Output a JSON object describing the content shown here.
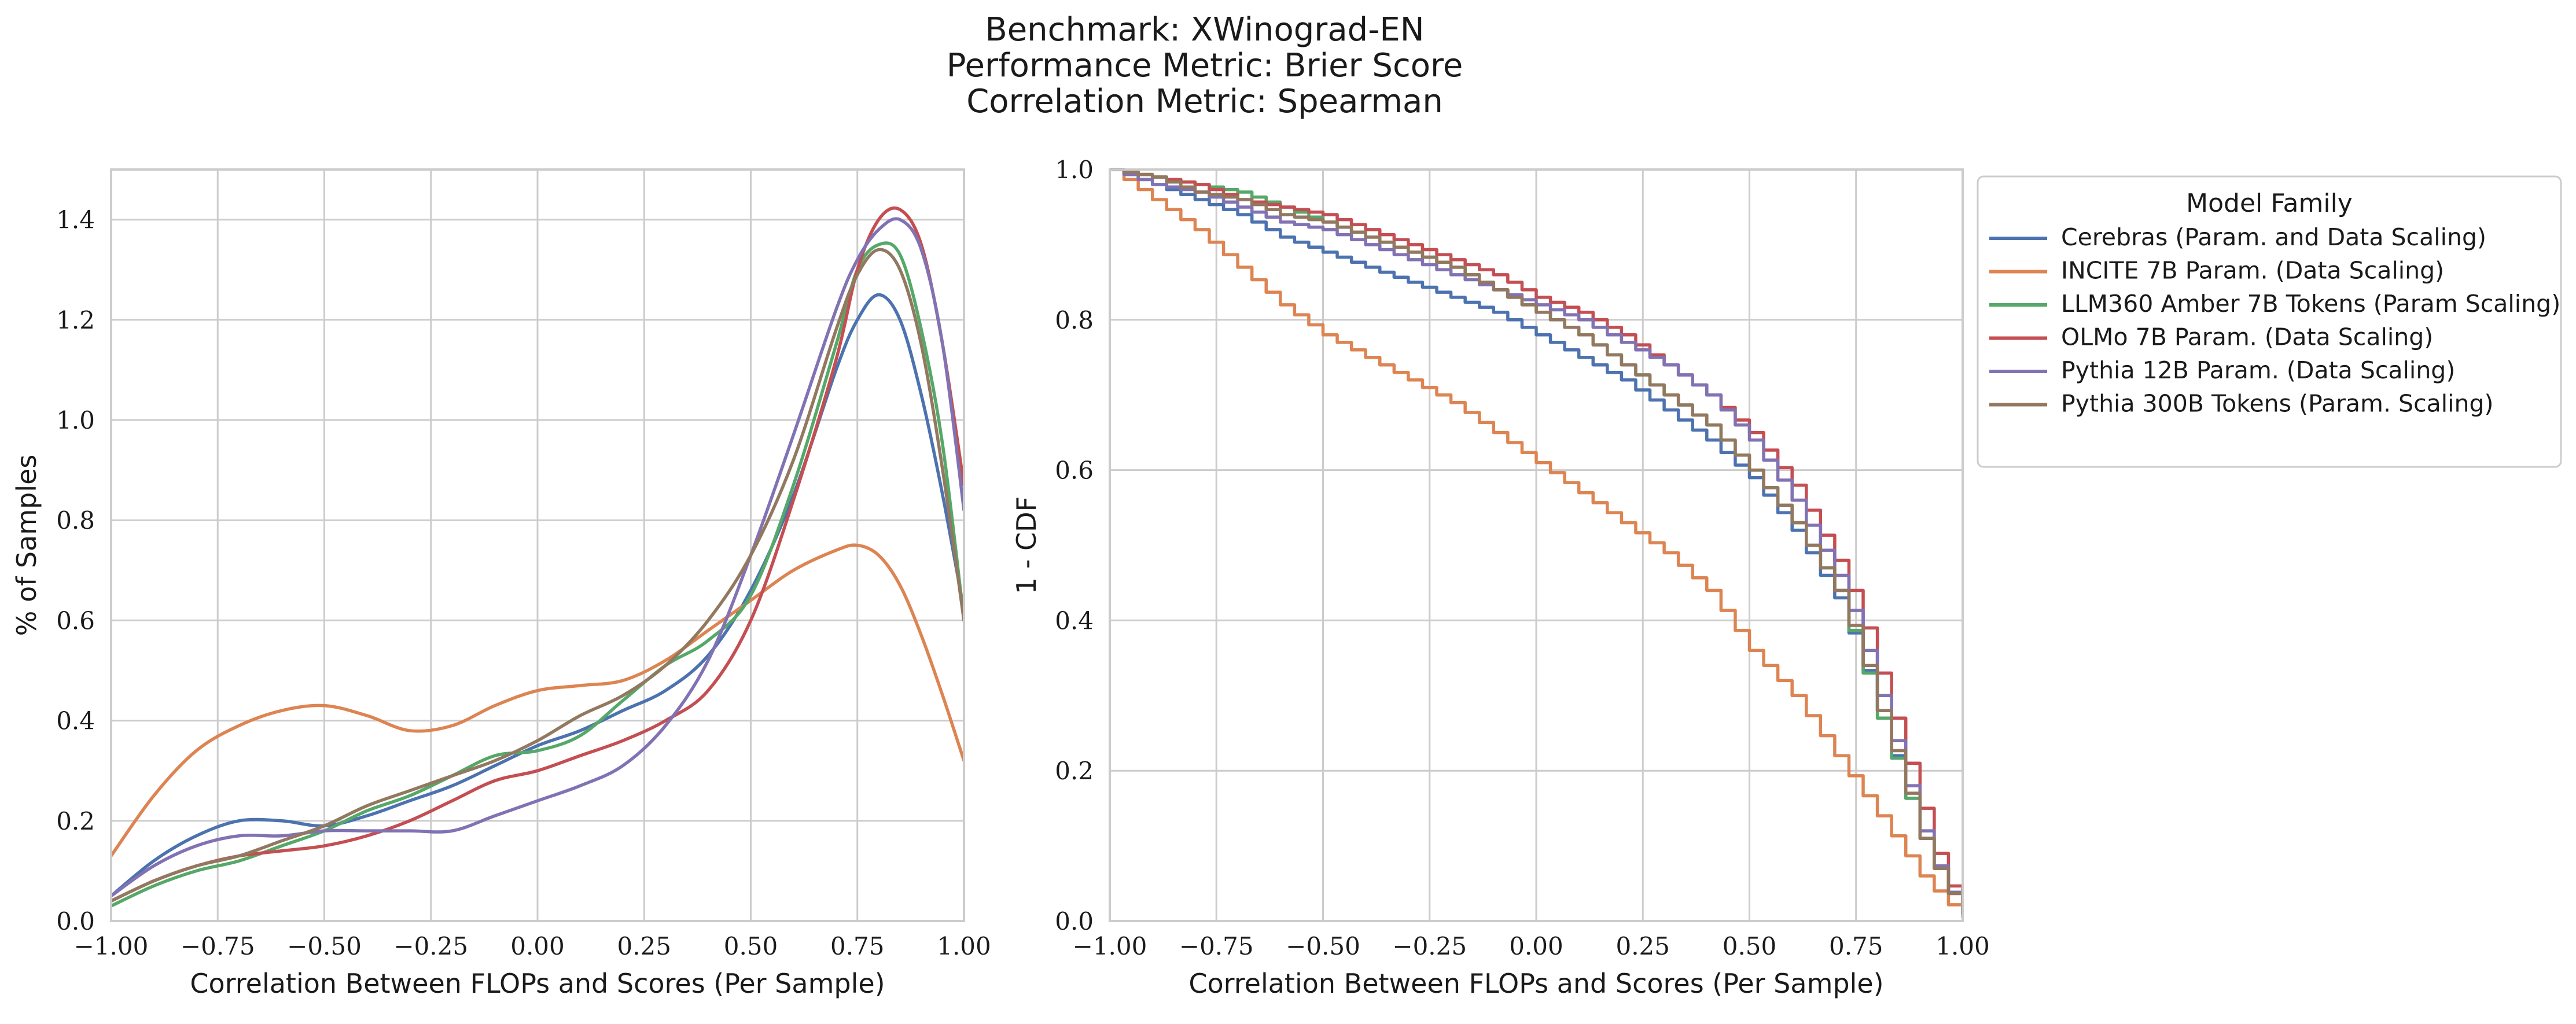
{
  "title_lines": [
    "Benchmark: XWinograd-EN",
    "Performance Metric: Brier Score",
    "Correlation Metric: Spearman"
  ],
  "colors": {
    "Cerebras": "#4c72b0",
    "INCITE": "#dd8452",
    "LLM360": "#55a868",
    "OLMo": "#c44e52",
    "Pythia12B": "#8172b3",
    "Pythia300B": "#937860"
  },
  "legend": {
    "title": "Model Family",
    "entries": [
      {
        "label": "Cerebras (Param. and Data Scaling)",
        "color": "#4c72b0"
      },
      {
        "label": "INCITE 7B Param. (Data Scaling)",
        "color": "#dd8452"
      },
      {
        "label": "LLM360 Amber 7B Tokens (Param Scaling)",
        "color": "#55a868"
      },
      {
        "label": "OLMo 7B Param. (Data Scaling)",
        "color": "#c44e52"
      },
      {
        "label": "Pythia 12B Param. (Data Scaling)",
        "color": "#8172b3"
      },
      {
        "label": "Pythia 300B Tokens (Param. Scaling)",
        "color": "#937860"
      }
    ]
  },
  "chart_data": [
    {
      "type": "line",
      "xlabel": "Correlation Between FLOPs and Scores (Per Sample)",
      "ylabel": "% of Samples",
      "xlim": [
        -1.0,
        1.0
      ],
      "ylim": [
        0.0,
        1.5
      ],
      "xticks": [
        -1.0,
        -0.75,
        -0.5,
        -0.25,
        0.0,
        0.25,
        0.5,
        0.75,
        1.0
      ],
      "xtick_labels": [
        "−1.00",
        "−0.75",
        "−0.50",
        "−0.25",
        "0.00",
        "0.25",
        "0.50",
        "0.75",
        "1.00"
      ],
      "yticks": [
        0.0,
        0.2,
        0.4,
        0.6,
        0.8,
        1.0,
        1.2,
        1.4
      ],
      "ytick_labels": [
        "0.0",
        "0.2",
        "0.4",
        "0.6",
        "0.8",
        "1.0",
        "1.2",
        "1.4"
      ],
      "grid": true,
      "x": [
        -1.0,
        -0.9,
        -0.8,
        -0.7,
        -0.6,
        -0.5,
        -0.4,
        -0.3,
        -0.2,
        -0.1,
        0.0,
        0.1,
        0.2,
        0.3,
        0.4,
        0.5,
        0.6,
        0.7,
        0.75,
        0.8,
        0.85,
        0.9,
        0.95,
        1.0
      ],
      "series": [
        {
          "name": "Cerebras (Param. and Data Scaling)",
          "color": "#4c72b0",
          "values": [
            0.05,
            0.12,
            0.17,
            0.2,
            0.2,
            0.19,
            0.21,
            0.24,
            0.27,
            0.31,
            0.35,
            0.38,
            0.42,
            0.46,
            0.53,
            0.66,
            0.85,
            1.1,
            1.2,
            1.25,
            1.2,
            1.05,
            0.85,
            0.62
          ]
        },
        {
          "name": "INCITE 7B Param. (Data Scaling)",
          "color": "#dd8452",
          "values": [
            0.13,
            0.25,
            0.34,
            0.39,
            0.42,
            0.43,
            0.41,
            0.38,
            0.39,
            0.43,
            0.46,
            0.47,
            0.48,
            0.52,
            0.58,
            0.64,
            0.7,
            0.74,
            0.75,
            0.73,
            0.67,
            0.57,
            0.45,
            0.32
          ]
        },
        {
          "name": "LLM360 Amber 7B Tokens (Param Scaling)",
          "color": "#55a868",
          "values": [
            0.03,
            0.07,
            0.1,
            0.12,
            0.15,
            0.18,
            0.22,
            0.25,
            0.29,
            0.33,
            0.34,
            0.37,
            0.44,
            0.51,
            0.56,
            0.65,
            0.87,
            1.15,
            1.3,
            1.35,
            1.33,
            1.18,
            0.95,
            0.6
          ]
        },
        {
          "name": "OLMo 7B Param. (Data Scaling)",
          "color": "#c44e52",
          "values": [
            0.04,
            0.08,
            0.11,
            0.13,
            0.14,
            0.15,
            0.17,
            0.2,
            0.24,
            0.28,
            0.3,
            0.33,
            0.36,
            0.4,
            0.46,
            0.6,
            0.84,
            1.12,
            1.3,
            1.4,
            1.42,
            1.35,
            1.15,
            0.87
          ]
        },
        {
          "name": "Pythia 12B Param. (Data Scaling)",
          "color": "#8172b3",
          "values": [
            0.05,
            0.11,
            0.15,
            0.17,
            0.17,
            0.18,
            0.18,
            0.18,
            0.18,
            0.21,
            0.24,
            0.27,
            0.31,
            0.39,
            0.52,
            0.73,
            0.97,
            1.22,
            1.32,
            1.38,
            1.4,
            1.34,
            1.15,
            0.82
          ]
        },
        {
          "name": "Pythia 300B Tokens (Param. Scaling)",
          "color": "#937860",
          "values": [
            0.04,
            0.08,
            0.11,
            0.13,
            0.16,
            0.19,
            0.23,
            0.26,
            0.29,
            0.32,
            0.36,
            0.41,
            0.45,
            0.51,
            0.6,
            0.73,
            0.92,
            1.18,
            1.29,
            1.34,
            1.3,
            1.15,
            0.9,
            0.6
          ]
        }
      ]
    },
    {
      "type": "line",
      "step": true,
      "xlabel": "Correlation Between FLOPs and Scores (Per Sample)",
      "ylabel": "1 - CDF",
      "xlim": [
        -1.0,
        1.0
      ],
      "ylim": [
        0.0,
        1.0
      ],
      "xticks": [
        -1.0,
        -0.75,
        -0.5,
        -0.25,
        0.0,
        0.25,
        0.5,
        0.75,
        1.0
      ],
      "xtick_labels": [
        "−1.00",
        "−0.75",
        "−0.50",
        "−0.25",
        "0.00",
        "0.25",
        "0.50",
        "0.75",
        "1.00"
      ],
      "yticks": [
        0.0,
        0.2,
        0.4,
        0.6,
        0.8,
        1.0
      ],
      "ytick_labels": [
        "0.0",
        "0.2",
        "0.4",
        "0.6",
        "0.8",
        "1.0"
      ],
      "grid": true,
      "legend_position": "outside right, top",
      "x": [
        -1.0,
        -0.9,
        -0.8,
        -0.7,
        -0.6,
        -0.5,
        -0.4,
        -0.3,
        -0.2,
        -0.1,
        0.0,
        0.1,
        0.2,
        0.3,
        0.4,
        0.5,
        0.6,
        0.7,
        0.75,
        0.8,
        0.85,
        0.9,
        0.95,
        1.0
      ],
      "series": [
        {
          "name": "Cerebras (Param. and Data Scaling)",
          "color": "#4c72b0",
          "values": [
            1.0,
            0.98,
            0.96,
            0.94,
            0.91,
            0.89,
            0.87,
            0.85,
            0.83,
            0.81,
            0.78,
            0.75,
            0.72,
            0.68,
            0.64,
            0.59,
            0.52,
            0.43,
            0.36,
            0.28,
            0.19,
            0.11,
            0.05,
            0.01
          ]
        },
        {
          "name": "INCITE 7B Param. (Data Scaling)",
          "color": "#dd8452",
          "values": [
            1.0,
            0.96,
            0.92,
            0.87,
            0.82,
            0.78,
            0.75,
            0.72,
            0.69,
            0.65,
            0.61,
            0.57,
            0.53,
            0.49,
            0.44,
            0.36,
            0.3,
            0.22,
            0.18,
            0.14,
            0.1,
            0.06,
            0.03,
            0.005
          ]
        },
        {
          "name": "LLM360 Amber 7B Tokens (Param Scaling)",
          "color": "#55a868",
          "values": [
            1.0,
            0.99,
            0.98,
            0.97,
            0.95,
            0.93,
            0.91,
            0.89,
            0.87,
            0.84,
            0.81,
            0.78,
            0.74,
            0.7,
            0.66,
            0.6,
            0.53,
            0.44,
            0.36,
            0.27,
            0.19,
            0.11,
            0.05,
            0.01
          ]
        },
        {
          "name": "OLMo 7B Param. (Data Scaling)",
          "color": "#c44e52",
          "values": [
            1.0,
            0.99,
            0.98,
            0.96,
            0.95,
            0.94,
            0.92,
            0.9,
            0.88,
            0.86,
            0.83,
            0.81,
            0.78,
            0.74,
            0.7,
            0.65,
            0.58,
            0.48,
            0.42,
            0.33,
            0.24,
            0.15,
            0.06,
            0.02
          ]
        },
        {
          "name": "Pythia 12B Param. (Data Scaling)",
          "color": "#8172b3",
          "values": [
            1.0,
            0.98,
            0.97,
            0.95,
            0.93,
            0.92,
            0.9,
            0.88,
            0.86,
            0.84,
            0.82,
            0.8,
            0.77,
            0.74,
            0.7,
            0.64,
            0.56,
            0.46,
            0.39,
            0.3,
            0.21,
            0.12,
            0.05,
            0.015
          ]
        },
        {
          "name": "Pythia 300B Tokens (Param. Scaling)",
          "color": "#937860",
          "values": [
            1.0,
            0.99,
            0.97,
            0.96,
            0.94,
            0.93,
            0.91,
            0.89,
            0.87,
            0.84,
            0.81,
            0.78,
            0.74,
            0.7,
            0.66,
            0.6,
            0.53,
            0.44,
            0.37,
            0.28,
            0.2,
            0.11,
            0.05,
            0.01
          ]
        }
      ]
    }
  ]
}
